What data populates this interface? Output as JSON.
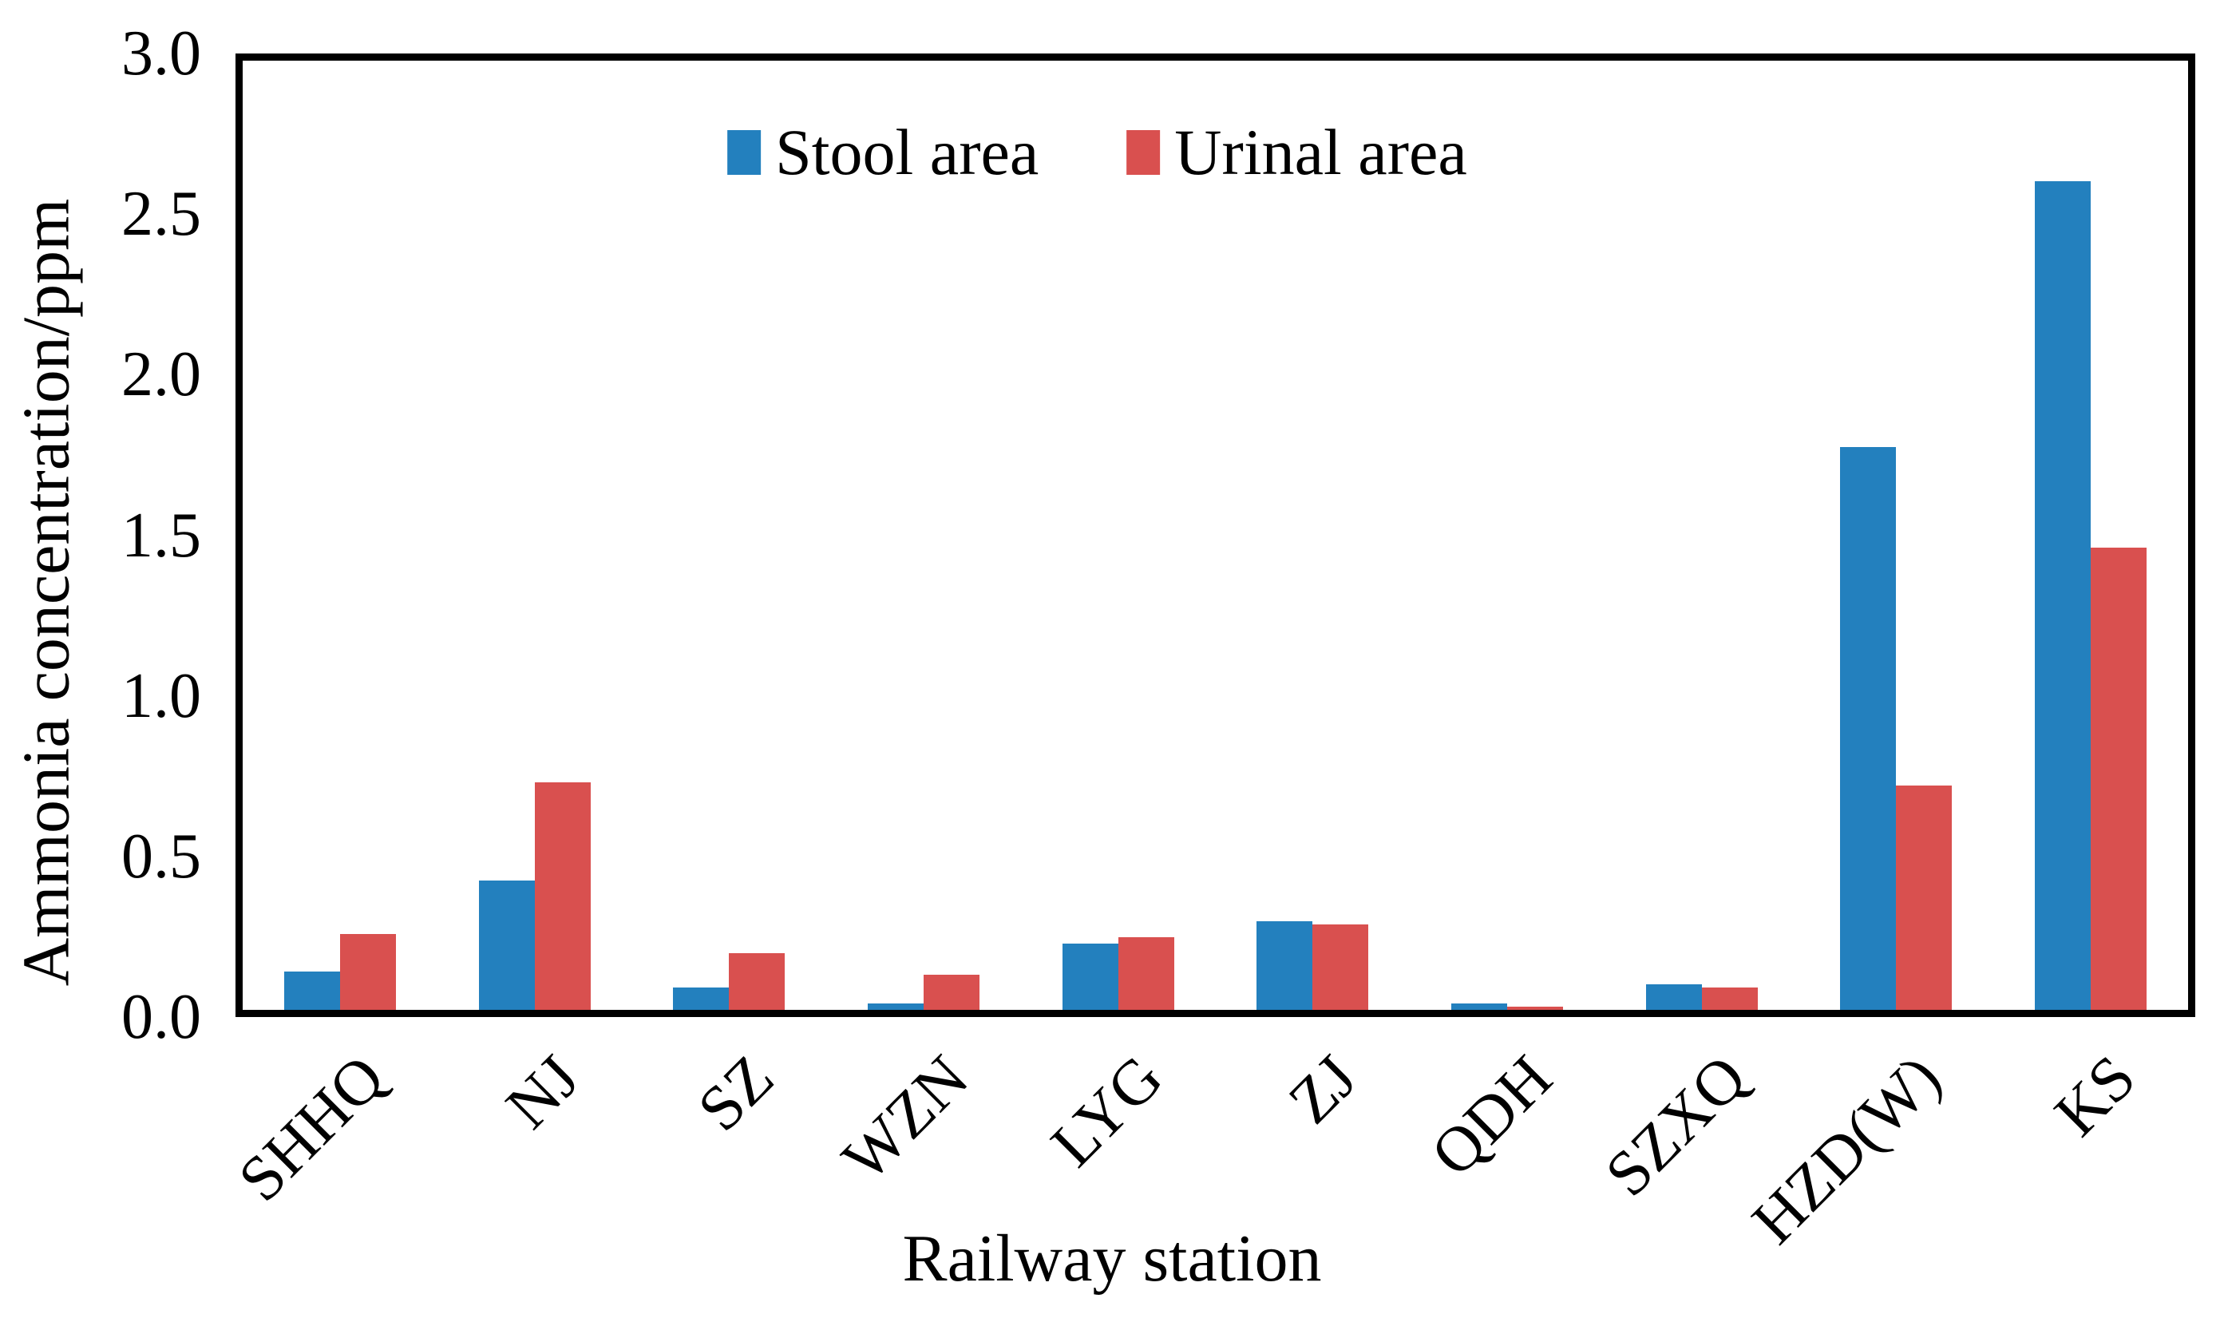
{
  "chart_data": {
    "type": "bar",
    "title": "",
    "categories": [
      "SHHQ",
      "NJ",
      "SZ",
      "WZN",
      "LYG",
      "ZJ",
      "QDH",
      "SZXQ",
      "HZD(W)",
      "KS"
    ],
    "series": [
      {
        "name": "Stool area",
        "color": "#2380BE",
        "values": [
          0.12,
          0.41,
          0.07,
          0.02,
          0.21,
          0.28,
          0.02,
          0.08,
          1.78,
          2.62
        ]
      },
      {
        "name": "Urinal area",
        "color": "#D9504F",
        "values": [
          0.24,
          0.72,
          0.18,
          0.11,
          0.23,
          0.27,
          0.01,
          0.07,
          0.71,
          1.46
        ]
      }
    ],
    "xlabel": "Railway station",
    "ylabel": "Ammonia concentration/ppm",
    "ylim": [
      0.0,
      3.0
    ],
    "ytick_step": 0.5,
    "ytick_labels": [
      "0.0",
      "0.5",
      "1.0",
      "1.5",
      "2.0",
      "2.5",
      "3.0"
    ],
    "grid": false,
    "legend_position": "top-center-inside",
    "axis_color": "#000000",
    "background_color": "#FFFFFF"
  }
}
